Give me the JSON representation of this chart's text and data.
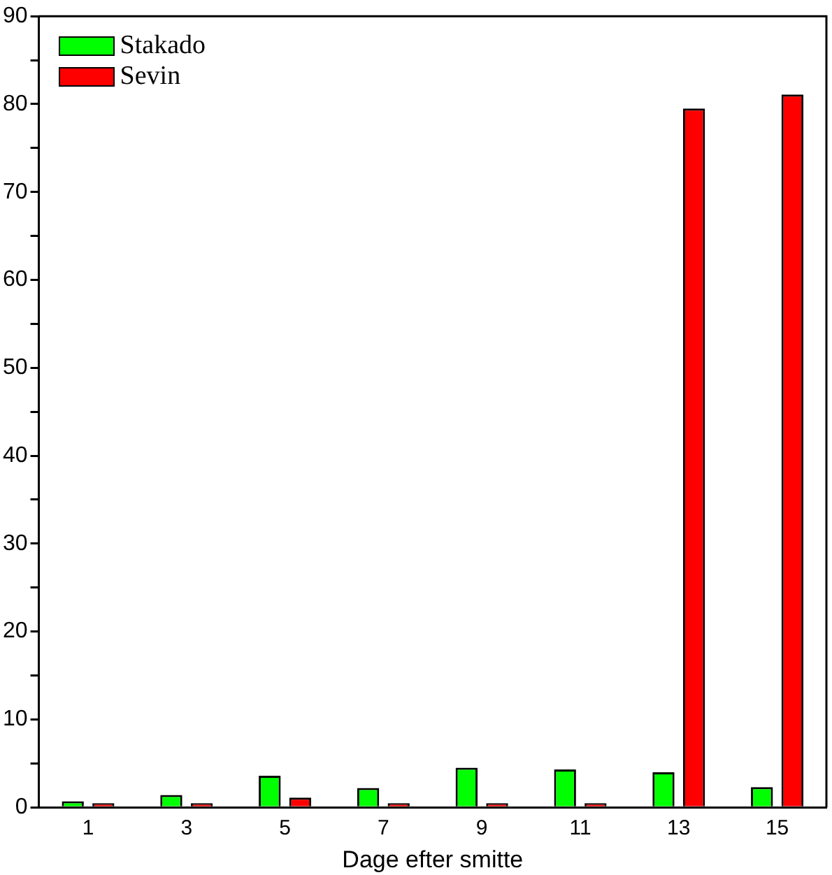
{
  "chart_data": {
    "type": "bar",
    "xlabel": "Dage efter smitte",
    "categories": [
      "1",
      "3",
      "5",
      "7",
      "9",
      "11",
      "13",
      "15"
    ],
    "series": [
      {
        "name": "Stakado",
        "color": "#00ff00",
        "values": [
          0.7,
          1.4,
          3.6,
          2.2,
          4.5,
          4.3,
          4.0,
          2.3
        ]
      },
      {
        "name": "Sevin",
        "color": "#ff0000",
        "values": [
          0.1,
          0.4,
          1.1,
          0.4,
          0.1,
          0.2,
          79.5,
          81.1
        ]
      }
    ],
    "ylim": [
      0,
      90
    ],
    "yticks": [
      0,
      {
        "value": 5,
        "label": null
      },
      10,
      {
        "value": 15,
        "label": null
      },
      20,
      {
        "value": 25,
        "label": null
      },
      30,
      {
        "value": 35,
        "label": null
      },
      40,
      {
        "value": 45,
        "label": null
      },
      50,
      {
        "value": 55,
        "label": null
      },
      60,
      {
        "value": 65,
        "label": null
      },
      70,
      {
        "value": 75,
        "label": null
      },
      80,
      {
        "value": 85,
        "label": null
      },
      90
    ],
    "grid": false,
    "legend": "top left"
  }
}
